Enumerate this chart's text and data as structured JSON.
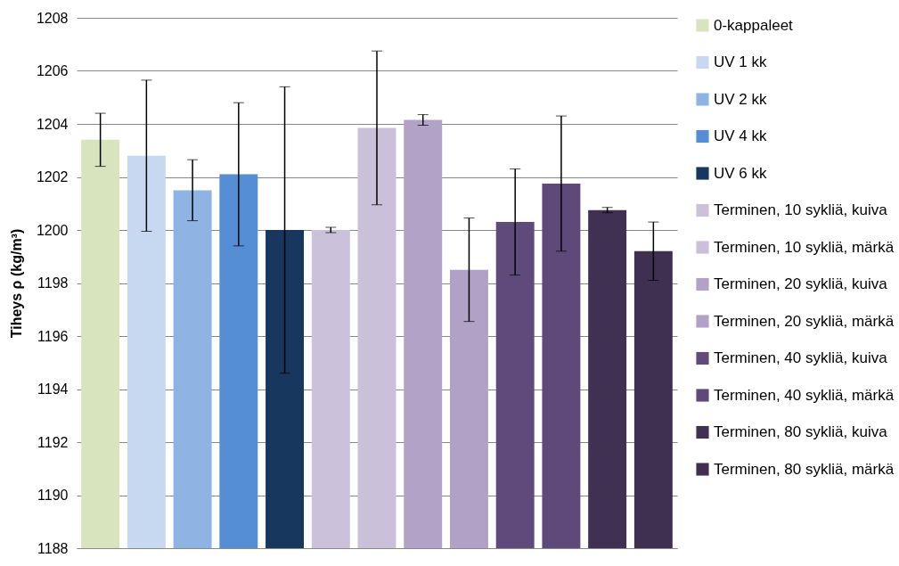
{
  "chart_data": {
    "type": "bar",
    "ylabel": "Tiheys ρ (kg/m³)",
    "categories": [
      null,
      null,
      null,
      null,
      null,
      null,
      null,
      null,
      null,
      null,
      null,
      null,
      null
    ],
    "ylim": [
      1188,
      1208
    ],
    "yticks": [
      1188,
      1190,
      1192,
      1194,
      1196,
      1198,
      1200,
      1202,
      1204,
      1206,
      1208
    ],
    "grid": "y",
    "legend": "right",
    "series": [
      {
        "name": "0-kappaleet",
        "color": "#d7e4bd",
        "values": [
          1203.4,
          null,
          null,
          null,
          null,
          null,
          null,
          null,
          null,
          null,
          null,
          null,
          null
        ],
        "errors": [
          1.0,
          null,
          null,
          null,
          null,
          null,
          null,
          null,
          null,
          null,
          null,
          null,
          null
        ]
      },
      {
        "name": "UV 1 kk",
        "color": "#c6d9f1",
        "values": [
          null,
          1202.8,
          null,
          null,
          null,
          null,
          null,
          null,
          null,
          null,
          null,
          null,
          null
        ],
        "errors": [
          null,
          2.85,
          null,
          null,
          null,
          null,
          null,
          null,
          null,
          null,
          null,
          null,
          null
        ]
      },
      {
        "name": "UV 2 kk",
        "color": "#8eb4e3",
        "values": [
          null,
          null,
          1201.5,
          null,
          null,
          null,
          null,
          null,
          null,
          null,
          null,
          null,
          null
        ],
        "errors": [
          null,
          null,
          1.15,
          null,
          null,
          null,
          null,
          null,
          null,
          null,
          null,
          null,
          null
        ]
      },
      {
        "name": "UV 4 kk",
        "color": "#558ed5",
        "values": [
          null,
          null,
          null,
          1202.1,
          null,
          null,
          null,
          null,
          null,
          null,
          null,
          null,
          null
        ],
        "errors": [
          null,
          null,
          null,
          2.7,
          null,
          null,
          null,
          null,
          null,
          null,
          null,
          null,
          null
        ]
      },
      {
        "name": "UV 6 kk",
        "color": "#17375e",
        "values": [
          null,
          null,
          null,
          null,
          1200.0,
          null,
          null,
          null,
          null,
          null,
          null,
          null,
          null
        ],
        "errors": [
          null,
          null,
          null,
          null,
          5.4,
          null,
          null,
          null,
          null,
          null,
          null,
          null,
          null
        ]
      },
      {
        "name": "Terminen, 10 sykliä, kuiva",
        "color": "#ccc1da",
        "values": [
          null,
          null,
          null,
          null,
          null,
          1200.0,
          null,
          null,
          null,
          null,
          null,
          null,
          null
        ],
        "errors": [
          null,
          null,
          null,
          null,
          null,
          0.1,
          null,
          null,
          null,
          null,
          null,
          null,
          null
        ]
      },
      {
        "name": "Terminen, 10 sykliä, märkä",
        "color": "#cbc0d9",
        "values": [
          null,
          null,
          null,
          null,
          null,
          null,
          1203.85,
          null,
          null,
          null,
          null,
          null,
          null
        ],
        "errors": [
          null,
          null,
          null,
          null,
          null,
          null,
          2.9,
          null,
          null,
          null,
          null,
          null,
          null
        ]
      },
      {
        "name": "Terminen, 20 sykliä, kuiva",
        "color": "#b3a2c7",
        "values": [
          null,
          null,
          null,
          null,
          null,
          null,
          null,
          1204.15,
          null,
          null,
          null,
          null,
          null
        ],
        "errors": [
          null,
          null,
          null,
          null,
          null,
          null,
          null,
          0.2,
          null,
          null,
          null,
          null,
          null
        ]
      },
      {
        "name": "Terminen, 20 sykliä, märkä",
        "color": "#b2a1c6",
        "values": [
          null,
          null,
          null,
          null,
          null,
          null,
          null,
          null,
          1198.5,
          null,
          null,
          null,
          null
        ],
        "errors": [
          null,
          null,
          null,
          null,
          null,
          null,
          null,
          null,
          1.95,
          null,
          null,
          null,
          null
        ]
      },
      {
        "name": "Terminen, 40 sykliä, kuiva",
        "color": "#604a7b",
        "values": [
          null,
          null,
          null,
          null,
          null,
          null,
          null,
          null,
          null,
          1200.3,
          null,
          null,
          null
        ],
        "errors": [
          null,
          null,
          null,
          null,
          null,
          null,
          null,
          null,
          null,
          2.0,
          null,
          null,
          null
        ]
      },
      {
        "name": "Terminen, 40 sykliä, märkä",
        "color": "#5f497a",
        "values": [
          null,
          null,
          null,
          null,
          null,
          null,
          null,
          null,
          null,
          null,
          1201.75,
          null,
          null
        ],
        "errors": [
          null,
          null,
          null,
          null,
          null,
          null,
          null,
          null,
          null,
          null,
          2.55,
          null,
          null
        ]
      },
      {
        "name": "Terminen, 80 sykliä, kuiva",
        "color": "#403152",
        "values": [
          null,
          null,
          null,
          null,
          null,
          null,
          null,
          null,
          null,
          null,
          null,
          1200.75,
          null
        ],
        "errors": [
          null,
          null,
          null,
          null,
          null,
          null,
          null,
          null,
          null,
          null,
          null,
          0.1,
          null
        ]
      },
      {
        "name": "Terminen, 80 sykliä, märkä",
        "color": "#3f3051",
        "values": [
          null,
          null,
          null,
          null,
          null,
          null,
          null,
          null,
          null,
          null,
          null,
          null,
          1199.2
        ],
        "errors": [
          null,
          null,
          null,
          null,
          null,
          null,
          null,
          null,
          null,
          null,
          null,
          null,
          1.1
        ]
      }
    ]
  }
}
